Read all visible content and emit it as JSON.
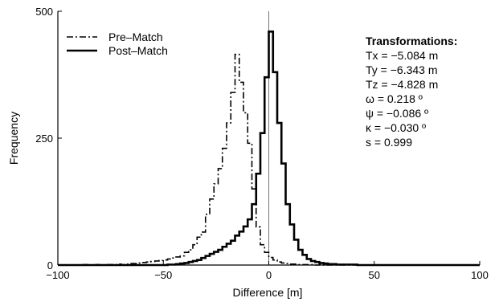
{
  "chart_data": {
    "type": "line",
    "title": "",
    "xlabel": "Difference [m]",
    "ylabel": "Frequency",
    "xlim": [
      -100,
      100
    ],
    "ylim": [
      0,
      500
    ],
    "x_ticks": [
      -100,
      -50,
      0,
      50,
      100
    ],
    "x_tick_labels": [
      "−100",
      "−50",
      "0",
      "50",
      "100"
    ],
    "y_ticks": [
      0,
      250,
      500
    ],
    "y_tick_labels": [
      "0",
      "250",
      "500"
    ],
    "grid": false,
    "legend_position": "top-left",
    "reference_line_x": 0,
    "bin_width": 2,
    "series": [
      {
        "name": "Pre–Match",
        "style": "dash-dot",
        "x": [
          -100,
          -98,
          -96,
          -94,
          -92,
          -90,
          -88,
          -86,
          -84,
          -82,
          -80,
          -78,
          -76,
          -74,
          -72,
          -70,
          -68,
          -66,
          -64,
          -62,
          -60,
          -58,
          -56,
          -54,
          -52,
          -50,
          -48,
          -46,
          -44,
          -42,
          -40,
          -38,
          -36,
          -34,
          -32,
          -30,
          -28,
          -26,
          -24,
          -22,
          -20,
          -18,
          -16,
          -14,
          -12,
          -10,
          -8,
          -6,
          -4,
          -2,
          0,
          2,
          4,
          6,
          8,
          10,
          12,
          14,
          16,
          18,
          20,
          22,
          24,
          26,
          28,
          30,
          32,
          34,
          36,
          38,
          40,
          42,
          44,
          46,
          48,
          50,
          52,
          54,
          56,
          58,
          60,
          62,
          64,
          66,
          68,
          70,
          72,
          74,
          76,
          78,
          80,
          82,
          84,
          86,
          88,
          90,
          92,
          94,
          96,
          98
        ],
        "values": [
          0,
          0,
          0,
          0,
          0,
          0,
          1,
          0,
          0,
          1,
          0,
          1,
          1,
          1,
          2,
          1,
          2,
          3,
          3,
          4,
          5,
          6,
          7,
          8,
          9,
          10,
          12,
          14,
          16,
          18,
          25,
          30,
          40,
          55,
          65,
          100,
          130,
          160,
          190,
          230,
          280,
          340,
          415,
          360,
          300,
          240,
          150,
          75,
          40,
          25,
          15,
          10,
          6,
          4,
          3,
          2,
          2,
          1,
          1,
          1,
          1,
          0,
          1,
          0,
          0,
          0,
          0,
          0,
          0,
          0,
          0,
          0,
          0,
          0,
          0,
          0,
          0,
          0,
          0,
          0,
          0,
          0,
          0,
          0,
          0,
          0,
          0,
          0,
          0,
          0,
          0,
          0,
          0,
          0,
          0,
          0,
          0,
          0,
          0,
          0
        ]
      },
      {
        "name": "Post–Match",
        "style": "solid",
        "x": [
          -100,
          -98,
          -96,
          -94,
          -92,
          -90,
          -88,
          -86,
          -84,
          -82,
          -80,
          -78,
          -76,
          -74,
          -72,
          -70,
          -68,
          -66,
          -64,
          -62,
          -60,
          -58,
          -56,
          -54,
          -52,
          -50,
          -48,
          -46,
          -44,
          -42,
          -40,
          -38,
          -36,
          -34,
          -32,
          -30,
          -28,
          -26,
          -24,
          -22,
          -20,
          -18,
          -16,
          -14,
          -12,
          -10,
          -8,
          -6,
          -4,
          -2,
          0,
          2,
          4,
          6,
          8,
          10,
          12,
          14,
          16,
          18,
          20,
          22,
          24,
          26,
          28,
          30,
          32,
          34,
          36,
          38,
          40,
          42,
          44,
          46,
          48,
          50,
          52,
          54,
          56,
          58,
          60,
          62,
          64,
          66,
          68,
          70,
          72,
          74,
          76,
          78,
          80,
          82,
          84,
          86,
          88,
          90,
          92,
          94,
          96,
          98
        ],
        "values": [
          0,
          0,
          0,
          0,
          0,
          0,
          0,
          0,
          0,
          0,
          0,
          0,
          0,
          0,
          0,
          0,
          0,
          0,
          0,
          0,
          0,
          0,
          0,
          0,
          0,
          0,
          1,
          1,
          2,
          3,
          4,
          6,
          8,
          10,
          14,
          18,
          22,
          26,
          30,
          36,
          42,
          48,
          58,
          66,
          76,
          90,
          120,
          180,
          260,
          370,
          460,
          380,
          280,
          200,
          120,
          80,
          50,
          30,
          20,
          12,
          8,
          6,
          4,
          3,
          2,
          2,
          1,
          1,
          1,
          1,
          1,
          0,
          0,
          0,
          0,
          0,
          0,
          0,
          0,
          0,
          0,
          0,
          0,
          0,
          0,
          0,
          0,
          0,
          0,
          0,
          0,
          0,
          0,
          0,
          0,
          0,
          0,
          0,
          0,
          0
        ]
      }
    ],
    "annotation": {
      "title": "Transformations:",
      "lines": [
        "Tx = −5.084 m",
        "Ty = −6.343 m",
        "Tz = −4.828 m",
        "ω = 0.218 º",
        "ψ = −0.086 º",
        "κ = −0.030 º",
        "s = 0.999"
      ]
    }
  }
}
